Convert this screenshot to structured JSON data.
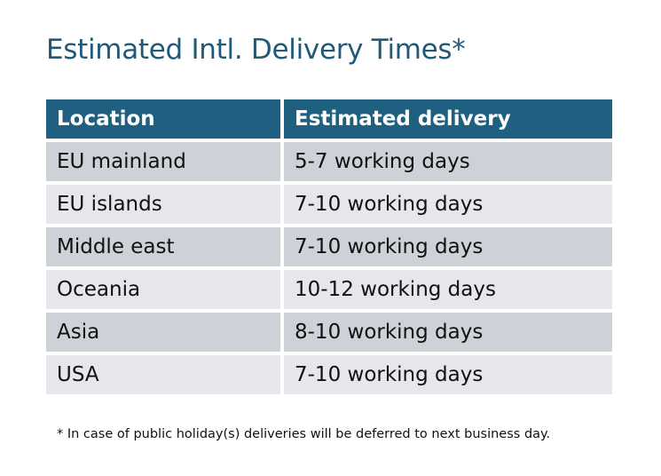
{
  "title": "Estimated Intl. Delivery Times*",
  "table": {
    "headers": [
      "Location",
      "Estimated delivery"
    ],
    "rows": [
      [
        "EU mainland",
        "5-7 working days"
      ],
      [
        "EU islands",
        "7-10 working days"
      ],
      [
        "Middle east",
        "7-10 working days"
      ],
      [
        "Oceania",
        "10-12 working days"
      ],
      [
        "Asia",
        "8-10 working days"
      ],
      [
        "USA",
        "7-10 working days"
      ]
    ]
  },
  "footnote": "* In case of public holiday(s) deliveries will be deferred to next business day.",
  "colors": {
    "header": "#1f6080",
    "title": "#1f5a78",
    "row_dark": "#cdd1d8",
    "row_light": "#e5e7ea"
  }
}
